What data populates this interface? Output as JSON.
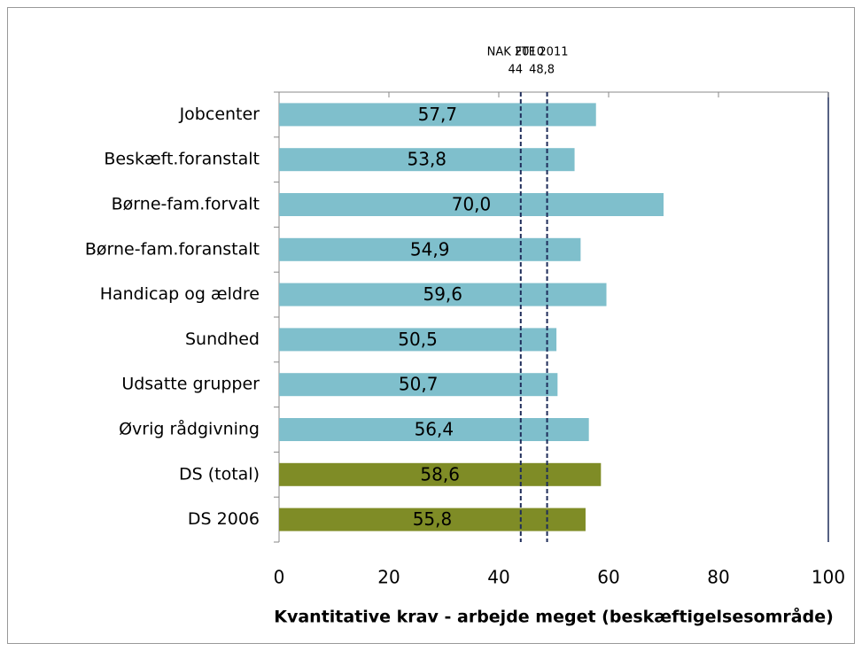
{
  "chart_data": {
    "type": "bar",
    "orientation": "horizontal",
    "categories": [
      "Jobcenter",
      "Beskæft.foranstalt",
      "Børne-fam.forvalt",
      "Børne-fam.foranstalt",
      "Handicap og ældre",
      "Sundhed",
      "Udsatte grupper",
      "Øvrig rådgivning",
      "DS (total)",
      "DS 2006"
    ],
    "values": [
      57.7,
      53.8,
      70.0,
      54.9,
      59.6,
      50.5,
      50.7,
      56.4,
      58.6,
      55.8
    ],
    "value_labels": [
      "57,7",
      "53,8",
      "70,0",
      "54,9",
      "59,6",
      "50,5",
      "50,7",
      "56,4",
      "58,6",
      "55,8"
    ],
    "colors": [
      "#7fbfcc",
      "#7fbfcc",
      "#7fbfcc",
      "#7fbfcc",
      "#7fbfcc",
      "#7fbfcc",
      "#7fbfcc",
      "#7fbfcc",
      "#7f8c26",
      "#7f8c26"
    ],
    "reference_lines": [
      {
        "label": "NAK 2010",
        "value": 44,
        "value_label": "44"
      },
      {
        "label": "FTF 2011",
        "value": 48.8,
        "value_label": "48,8"
      }
    ],
    "reference_color": "#1f2d5a",
    "xlim": [
      0,
      100
    ],
    "xticks": [
      0,
      20,
      40,
      60,
      80,
      100
    ],
    "x_label": "Kvantitative krav - arbejde meget (beskæftigelsesområde)"
  }
}
